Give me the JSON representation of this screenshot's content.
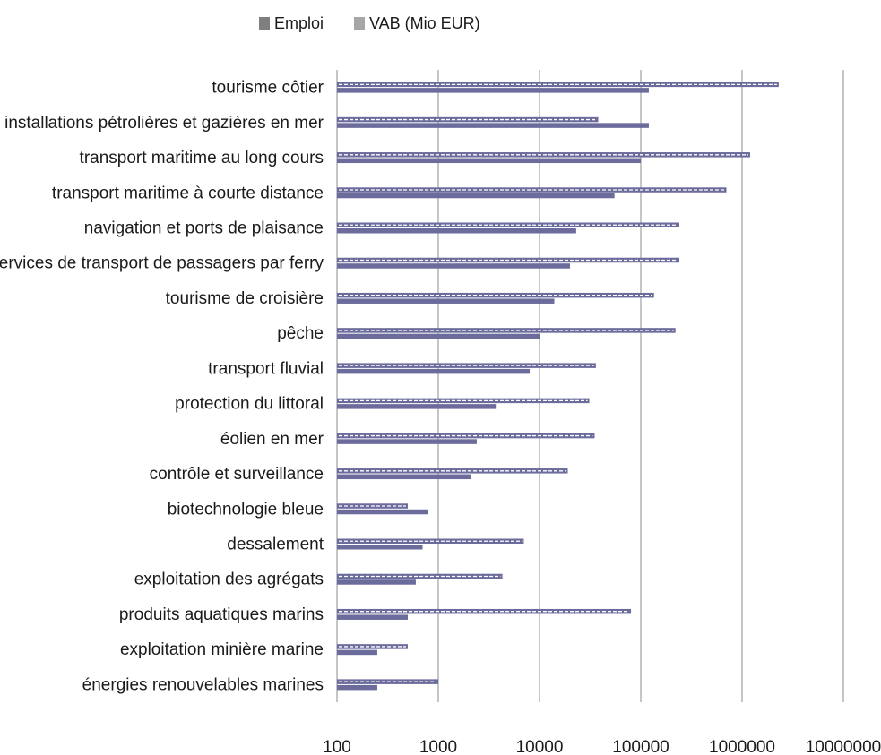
{
  "chart_data": {
    "type": "bar",
    "orientation": "horizontal",
    "x_scale": "log",
    "xlim": [
      100,
      10000000
    ],
    "x_ticks": [
      "100",
      "1000",
      "10000",
      "100000",
      "1000000",
      "10000000"
    ],
    "grid": "vertical",
    "legend_position": "top",
    "categories": [
      "tourisme côtier",
      "installations pétrolières et gazières en mer",
      "transport maritime au long cours",
      "transport maritime à courte distance",
      "navigation et ports de plaisance",
      "services de transport de passagers par ferry",
      "tourisme de croisière",
      "pêche",
      "transport fluvial",
      "protection du littoral",
      "éolien en mer",
      "contrôle et surveillance",
      "biotechnologie bleue",
      "dessalement",
      "exploitation des agrégats",
      "produits aquatiques marins",
      "exploitation minière marine",
      "énergies renouvelables marines"
    ],
    "series": [
      {
        "name": "Emploi",
        "color": "#7f7f7f",
        "bar_color": "#6b6b9c",
        "values": [
          2300000,
          38000,
          1200000,
          700000,
          240000,
          240000,
          135000,
          220000,
          36000,
          31000,
          35000,
          19000,
          500,
          7000,
          4300,
          80000,
          500,
          1000
        ]
      },
      {
        "name": "VAB (Mio EUR)",
        "color": "#a6a6a6",
        "bar_color": "#6b6b9c",
        "values": [
          120000,
          120000,
          100000,
          55000,
          23000,
          20000,
          14000,
          10000,
          8000,
          3700,
          2400,
          2100,
          800,
          700,
          600,
          500,
          250,
          250
        ]
      }
    ]
  }
}
